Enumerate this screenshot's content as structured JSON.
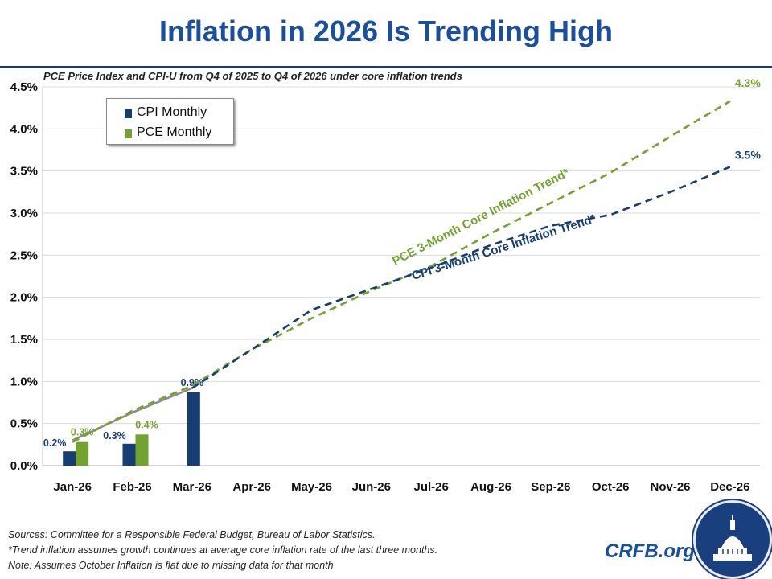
{
  "title": "Inflation in 2026 Is Trending High",
  "subtitle": "PCE Price Index and CPI-U from Q4 of 2025 to Q4 of 2026 under core inflation trends",
  "colors": {
    "title": "#1a4f9c",
    "cpi": "#173e73",
    "pce": "#72a22f",
    "gray": "#8c8c8c"
  },
  "legend": {
    "cpi": "CPI Monthly",
    "pce": "PCE Monthly"
  },
  "footer": {
    "line1": "Sources: Committee for a Responsible Federal Budget, Bureau of Labor Statistics.",
    "line2": "*Trend inflation assumes growth continues at average core inflation rate of the last three months.",
    "line3": "Note: Assumes October Inflation is flat due to missing data for that month"
  },
  "brand": "CRFB.org",
  "chart_data": {
    "type": "bar",
    "categories": [
      "Jan-26",
      "Feb-26",
      "Mar-26",
      "Apr-26",
      "May-26",
      "Jun-26",
      "Jul-26",
      "Aug-26",
      "Sep-26",
      "Oct-26",
      "Nov-26",
      "Dec-26"
    ],
    "ylim": [
      0,
      4.5
    ],
    "yticks": [
      "0.0%",
      "0.5%",
      "1.0%",
      "1.5%",
      "2.0%",
      "2.5%",
      "3.0%",
      "3.5%",
      "4.0%",
      "4.5%"
    ],
    "grid": true,
    "legend_position": "top-left",
    "bars": [
      {
        "name": "CPI Monthly",
        "values": [
          0.17,
          0.26,
          0.87
        ],
        "labels": [
          "0.2%",
          "0.3%",
          "0.9%"
        ]
      },
      {
        "name": "PCE Monthly",
        "values": [
          0.28,
          0.37
        ],
        "labels": [
          "0.3%",
          "0.4%"
        ]
      }
    ],
    "lines": [
      {
        "name": "Cumulative (actual)",
        "style": "solid",
        "x": [
          "Jan-26",
          "Feb-26",
          "Mar-26"
        ],
        "values": [
          0.3,
          0.63,
          0.92
        ]
      },
      {
        "name": "PCE 3-Month Core Inflation Trend*",
        "style": "dashed",
        "x": [
          "Jan-26",
          "Feb-26",
          "Mar-26",
          "Apr-26",
          "May-26",
          "Jun-26",
          "Jul-26",
          "Aug-26",
          "Sep-26",
          "Oct-26",
          "Nov-26",
          "Dec-26"
        ],
        "values": [
          0.28,
          0.65,
          0.95,
          1.38,
          1.75,
          2.08,
          2.37,
          2.76,
          3.12,
          3.48,
          3.91,
          4.33
        ],
        "end_label": "4.3%"
      },
      {
        "name": "CPI 3-Month Core Inflation Trend*",
        "style": "dashed",
        "x": [
          "Mar-26",
          "Apr-26",
          "May-26",
          "Jun-26",
          "Jul-26",
          "Aug-26",
          "Sep-26",
          "Oct-26",
          "Nov-26",
          "Dec-26"
        ],
        "values": [
          0.92,
          1.38,
          1.85,
          2.1,
          2.35,
          2.62,
          2.85,
          2.98,
          3.25,
          3.55
        ],
        "end_label": "3.5%"
      }
    ]
  }
}
